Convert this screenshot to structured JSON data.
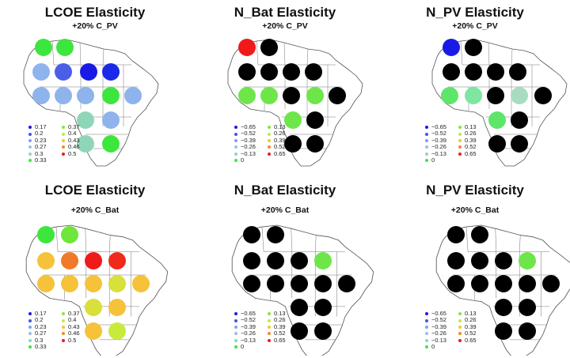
{
  "legends": {
    "lcoe": {
      "entries": [
        {
          "label": "0.17",
          "color": "#1a1ae6"
        },
        {
          "label": "0.2",
          "color": "#4455e8"
        },
        {
          "label": "0.23",
          "color": "#7fa3e8"
        },
        {
          "label": "0.27",
          "color": "#9fbde6"
        },
        {
          "label": "0.3",
          "color": "#8fd6b8"
        },
        {
          "label": "0.33",
          "color": "#3de63d"
        },
        {
          "label": "0.37",
          "color": "#88e63a"
        },
        {
          "label": "0.4",
          "color": "#c8ea3a"
        },
        {
          "label": "0.43",
          "color": "#f0c83a"
        },
        {
          "label": "0.46",
          "color": "#f08a2a"
        },
        {
          "label": "0.5",
          "color": "#f01a1a"
        }
      ]
    },
    "npv": {
      "entries": [
        {
          "label": "−0.65",
          "color": "#1a1ae6"
        },
        {
          "label": "−0.52",
          "color": "#4455e8"
        },
        {
          "label": "−0.39",
          "color": "#7fa3e8"
        },
        {
          "label": "−0.26",
          "color": "#9fbde6"
        },
        {
          "label": "−0.13",
          "color": "#8fd6b8"
        },
        {
          "label": "0",
          "color": "#3de63d"
        },
        {
          "label": "0.13",
          "color": "#88e63a"
        },
        {
          "label": "0.26",
          "color": "#c8ea3a"
        },
        {
          "label": "0.39",
          "color": "#f0c83a"
        },
        {
          "label": "0.52",
          "color": "#f08a2a"
        },
        {
          "label": "0.65",
          "color": "#f01a1a"
        }
      ]
    }
  },
  "panels": [
    {
      "id": "p1",
      "title": "LCOE Elasticity",
      "subtitle": "+20% C_PV",
      "legend": "lcoe",
      "points": [
        {
          "name": "dot-1",
          "color": "#3de63d"
        },
        {
          "name": "dot-2",
          "color": "#3de63d"
        },
        {
          "name": "dot-3",
          "color": "#8fb3ec"
        },
        {
          "name": "dot-4",
          "color": "#4a5ee8"
        },
        {
          "name": "dot-5",
          "color": "#1a1ae6"
        },
        {
          "name": "dot-6",
          "color": "#1a2ae6"
        },
        {
          "name": "dot-7",
          "color": "#8fb3ec"
        },
        {
          "name": "dot-8",
          "color": "#8fb3ec"
        },
        {
          "name": "dot-9",
          "color": "#8fb3ec"
        },
        {
          "name": "dot-10",
          "color": "#3de63d"
        },
        {
          "name": "dot-11",
          "color": "#8fb3ec"
        },
        {
          "name": "dot-12",
          "color": "#8fd6b8"
        },
        {
          "name": "dot-13",
          "color": "#8fb3ec"
        },
        {
          "name": "dot-14",
          "color": "#8fd6b8"
        },
        {
          "name": "dot-15",
          "color": "#3de63d"
        }
      ]
    },
    {
      "id": "p2",
      "title": "N_Bat Elasticity",
      "subtitle": "+20% C_PV",
      "legend": "npv",
      "points": [
        {
          "name": "dot-1",
          "color": "#f01a1a"
        },
        {
          "name": "dot-2",
          "color": "#000000"
        },
        {
          "name": "dot-3",
          "color": "#000000"
        },
        {
          "name": "dot-4",
          "color": "#000000"
        },
        {
          "name": "dot-5",
          "color": "#000000"
        },
        {
          "name": "dot-6",
          "color": "#000000"
        },
        {
          "name": "dot-7",
          "color": "#6ee64a"
        },
        {
          "name": "dot-8",
          "color": "#6ee64a"
        },
        {
          "name": "dot-9",
          "color": "#000000"
        },
        {
          "name": "dot-10",
          "color": "#6ee64a"
        },
        {
          "name": "dot-11",
          "color": "#000000"
        },
        {
          "name": "dot-12",
          "color": "#6ee64a"
        },
        {
          "name": "dot-13",
          "color": "#000000"
        },
        {
          "name": "dot-14",
          "color": "#000000"
        },
        {
          "name": "dot-15",
          "color": "#000000"
        }
      ]
    },
    {
      "id": "p3",
      "title": "N_PV Elasticity",
      "subtitle": "+20% C_PV",
      "legend": "npv",
      "points": [
        {
          "name": "dot-1",
          "color": "#1a1ae6"
        },
        {
          "name": "dot-2",
          "color": "#000000"
        },
        {
          "name": "dot-3",
          "color": "#000000"
        },
        {
          "name": "dot-4",
          "color": "#000000"
        },
        {
          "name": "dot-5",
          "color": "#000000"
        },
        {
          "name": "dot-6",
          "color": "#000000"
        },
        {
          "name": "dot-7",
          "color": "#5ee66a"
        },
        {
          "name": "dot-8",
          "color": "#7ee6a0"
        },
        {
          "name": "dot-9",
          "color": "#000000"
        },
        {
          "name": "dot-10",
          "color": "#a8dcc0"
        },
        {
          "name": "dot-11",
          "color": "#000000"
        },
        {
          "name": "dot-12",
          "color": "#5ee66a"
        },
        {
          "name": "dot-13",
          "color": "#000000"
        },
        {
          "name": "dot-14",
          "color": "#000000"
        },
        {
          "name": "dot-15",
          "color": "#000000"
        }
      ]
    },
    {
      "id": "p4",
      "title": "LCOE Elasticity",
      "subtitle": "+20% C_Bat",
      "legend": "lcoe",
      "points": [
        {
          "name": "dot-1",
          "color": "#3de63d"
        },
        {
          "name": "dot-2",
          "color": "#6ee63a"
        },
        {
          "name": "dot-3",
          "color": "#f5c23a"
        },
        {
          "name": "dot-4",
          "color": "#f07a2a"
        },
        {
          "name": "dot-5",
          "color": "#f01a1a"
        },
        {
          "name": "dot-6",
          "color": "#f02a1a"
        },
        {
          "name": "dot-7",
          "color": "#f5c23a"
        },
        {
          "name": "dot-8",
          "color": "#f5c23a"
        },
        {
          "name": "dot-9",
          "color": "#f5c23a"
        },
        {
          "name": "dot-10",
          "color": "#d8e03a"
        },
        {
          "name": "dot-11",
          "color": "#f5c23a"
        },
        {
          "name": "dot-12",
          "color": "#d8e03a"
        },
        {
          "name": "dot-13",
          "color": "#f5c23a"
        },
        {
          "name": "dot-14",
          "color": "#f5c23a"
        },
        {
          "name": "dot-15",
          "color": "#c8ea3a"
        }
      ]
    },
    {
      "id": "p5",
      "title": "N_Bat Elasticity",
      "subtitle": "+20% C_Bat",
      "legend": "npv",
      "points": [
        {
          "name": "dot-1",
          "color": "#000000"
        },
        {
          "name": "dot-2",
          "color": "#000000"
        },
        {
          "name": "dot-3",
          "color": "#000000"
        },
        {
          "name": "dot-4",
          "color": "#000000"
        },
        {
          "name": "dot-5",
          "color": "#000000"
        },
        {
          "name": "dot-6",
          "color": "#6ee64a"
        },
        {
          "name": "dot-7",
          "color": "#000000"
        },
        {
          "name": "dot-8",
          "color": "#000000"
        },
        {
          "name": "dot-9",
          "color": "#000000"
        },
        {
          "name": "dot-10",
          "color": "#000000"
        },
        {
          "name": "dot-11",
          "color": "#000000"
        },
        {
          "name": "dot-12",
          "color": "#000000"
        },
        {
          "name": "dot-13",
          "color": "#000000"
        },
        {
          "name": "dot-14",
          "color": "#000000"
        },
        {
          "name": "dot-15",
          "color": "#000000"
        }
      ]
    },
    {
      "id": "p6",
      "title": "N_PV Elasticity",
      "subtitle": "+20% C_Bat",
      "legend": "npv",
      "points": [
        {
          "name": "dot-1",
          "color": "#000000"
        },
        {
          "name": "dot-2",
          "color": "#000000"
        },
        {
          "name": "dot-3",
          "color": "#000000"
        },
        {
          "name": "dot-4",
          "color": "#000000"
        },
        {
          "name": "dot-5",
          "color": "#000000"
        },
        {
          "name": "dot-6",
          "color": "#6ee64a"
        },
        {
          "name": "dot-7",
          "color": "#000000"
        },
        {
          "name": "dot-8",
          "color": "#000000"
        },
        {
          "name": "dot-9",
          "color": "#000000"
        },
        {
          "name": "dot-10",
          "color": "#000000"
        },
        {
          "name": "dot-11",
          "color": "#000000"
        },
        {
          "name": "dot-12",
          "color": "#000000"
        },
        {
          "name": "dot-13",
          "color": "#000000"
        },
        {
          "name": "dot-14",
          "color": "#000000"
        },
        {
          "name": "dot-15",
          "color": "#000000"
        }
      ]
    }
  ]
}
